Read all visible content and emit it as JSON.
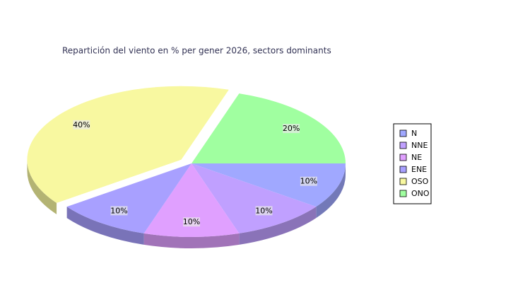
{
  "chart_data": {
    "type": "pie",
    "title": "Repartición del viento en % per gener 2026, sectors dominants",
    "categories": [
      "N",
      "NNE",
      "NE",
      "ENE",
      "OSO",
      "ONO"
    ],
    "values": [
      10,
      10,
      10,
      10,
      40,
      20
    ],
    "value_labels": [
      "10%",
      "10%",
      "10%",
      "10%",
      "40%",
      "20%"
    ],
    "colors": [
      "#a0a8ff",
      "#c0a0ff",
      "#e0a0ff",
      "#a8a0ff",
      "#f8f8a0",
      "#a0ffa0"
    ]
  }
}
